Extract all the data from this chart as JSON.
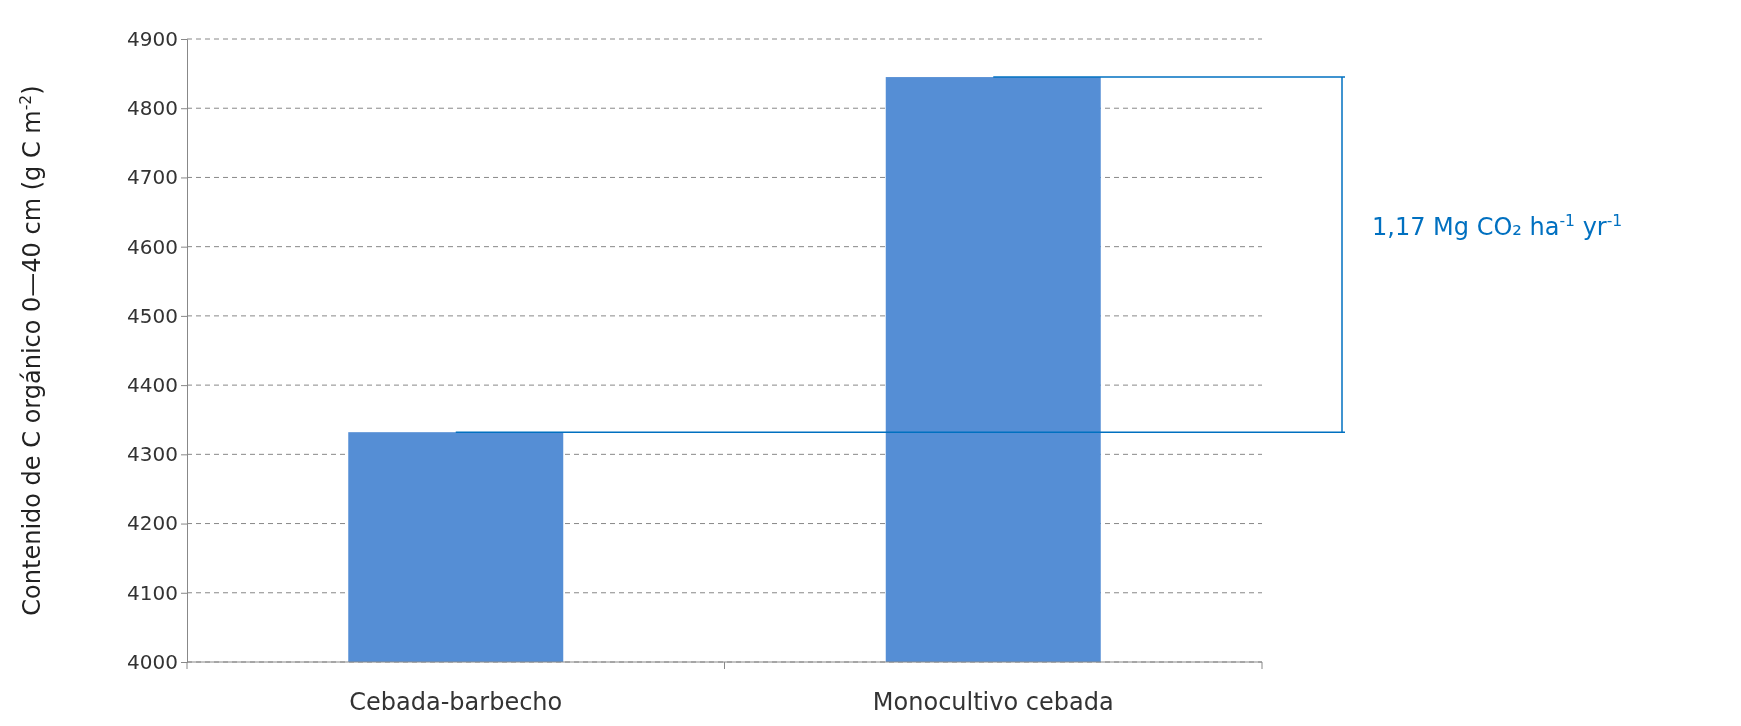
{
  "chart_data": {
    "type": "bar",
    "categories": [
      "Cebada-barbecho",
      "Monocultivo cebada"
    ],
    "values": [
      4332,
      4845
    ],
    "color": "#558ed5",
    "ylabel": "Contenido de C orgánico 0—40 cm (g C m$^{-2}$)",
    "ylim": [
      4000,
      4900
    ],
    "yticks": [
      4000,
      4100,
      4200,
      4300,
      4400,
      4500,
      4600,
      4700,
      4800,
      4900
    ],
    "grid": "y",
    "ref_lines": [
      {
        "axis": "y",
        "value": 4332,
        "color": "#0070c0"
      },
      {
        "axis": "y",
        "value": 4845,
        "color": "#0070c0"
      }
    ],
    "annotations": [
      "1,17 Mg CO₂ ha$^{-1}$ yr$^{-1}$"
    ]
  }
}
